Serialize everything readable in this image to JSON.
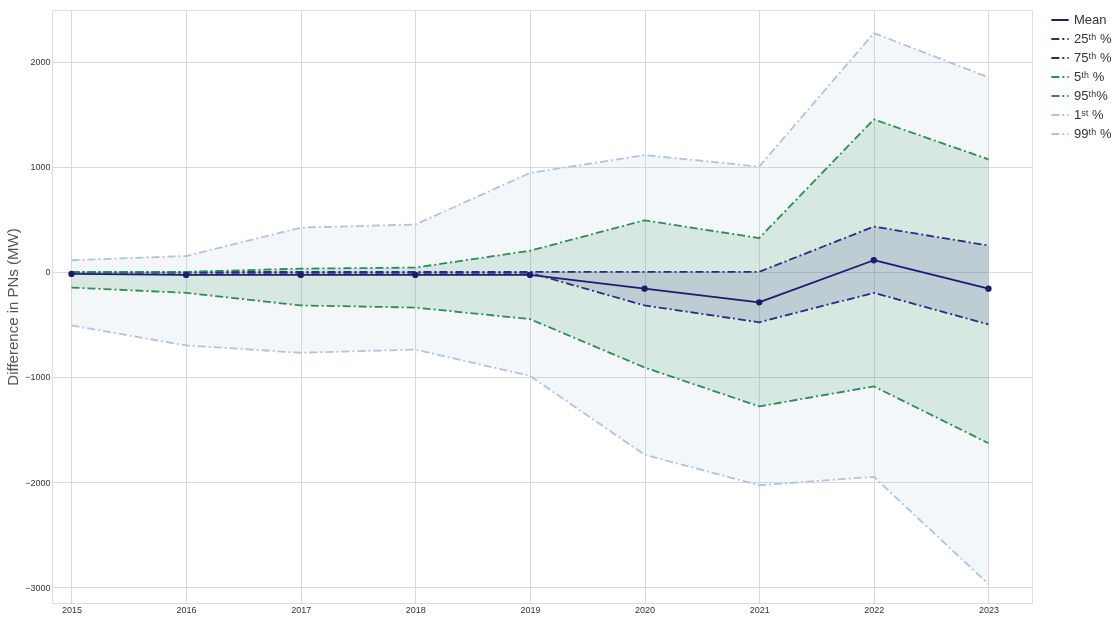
{
  "chart_data": {
    "type": "line",
    "ylabel": "Difference in PNs (MW)",
    "x": [
      2015,
      2016,
      2017,
      2018,
      2019,
      2020,
      2021,
      2022,
      2023
    ],
    "xlim": [
      2014.83,
      2023.38
    ],
    "xticks": [
      2015,
      2016,
      2017,
      2018,
      2019,
      2020,
      2021,
      2022,
      2023
    ],
    "ylim": [
      -3150,
      2490
    ],
    "yticks": [
      -3000,
      -2000,
      -1000,
      0,
      1000,
      2000
    ],
    "grid": true,
    "legend": "top right",
    "line_style": "dashed",
    "series": [
      {
        "name": "Mean",
        "color": "#1c1c6e",
        "marker": "circle",
        "line_style": "solid",
        "values": [
          -20,
          -30,
          -30,
          -30,
          -30,
          -160,
          -290,
          110,
          -160
        ]
      },
      {
        "name": "25ᵗʰ %",
        "color": "#2b2b80",
        "values": [
          -10,
          -10,
          -10,
          -10,
          -10,
          -320,
          -480,
          -200,
          -500
        ],
        "lower": [
          -10,
          -10,
          -10,
          -10,
          -10,
          -320,
          -480,
          -200,
          -500
        ],
        "upper": [
          0,
          0,
          0,
          0,
          0,
          0,
          0,
          430,
          250
        ]
      },
      {
        "name": "75ᵗʰ %",
        "color": "#2b2b80",
        "values": [
          0,
          0,
          0,
          0,
          0,
          0,
          0,
          430,
          250
        ]
      },
      {
        "name": "5ᵗʰ %",
        "color": "#2e8b57",
        "values": [
          -150,
          -200,
          -320,
          -340,
          -450,
          -910,
          -1280,
          -1090,
          -1630
        ],
        "lower": [
          -150,
          -200,
          -320,
          -340,
          -450,
          -910,
          -1280,
          -1090,
          -1630
        ],
        "upper": [
          0,
          0,
          30,
          40,
          200,
          490,
          320,
          1450,
          1070
        ]
      },
      {
        "name": "95ᵗʰ%",
        "color": "#2e8b57",
        "values": [
          0,
          0,
          30,
          40,
          200,
          490,
          320,
          1450,
          1070
        ]
      },
      {
        "name": "1ˢᵗ %",
        "color": "#b0c4de",
        "values": [
          -510,
          -700,
          -770,
          -740,
          -990,
          -1740,
          -2030,
          -1950,
          -2970
        ],
        "lower": [
          -510,
          -700,
          -770,
          -740,
          -990,
          -1740,
          -2030,
          -1950,
          -2970
        ],
        "upper": [
          110,
          150,
          420,
          450,
          940,
          1110,
          1000,
          2270,
          1850
        ]
      },
      {
        "name": "99ᵗʰ %",
        "color": "#b0c4de",
        "values": [
          110,
          150,
          420,
          450,
          940,
          1110,
          1000,
          2270,
          1850
        ]
      }
    ]
  }
}
